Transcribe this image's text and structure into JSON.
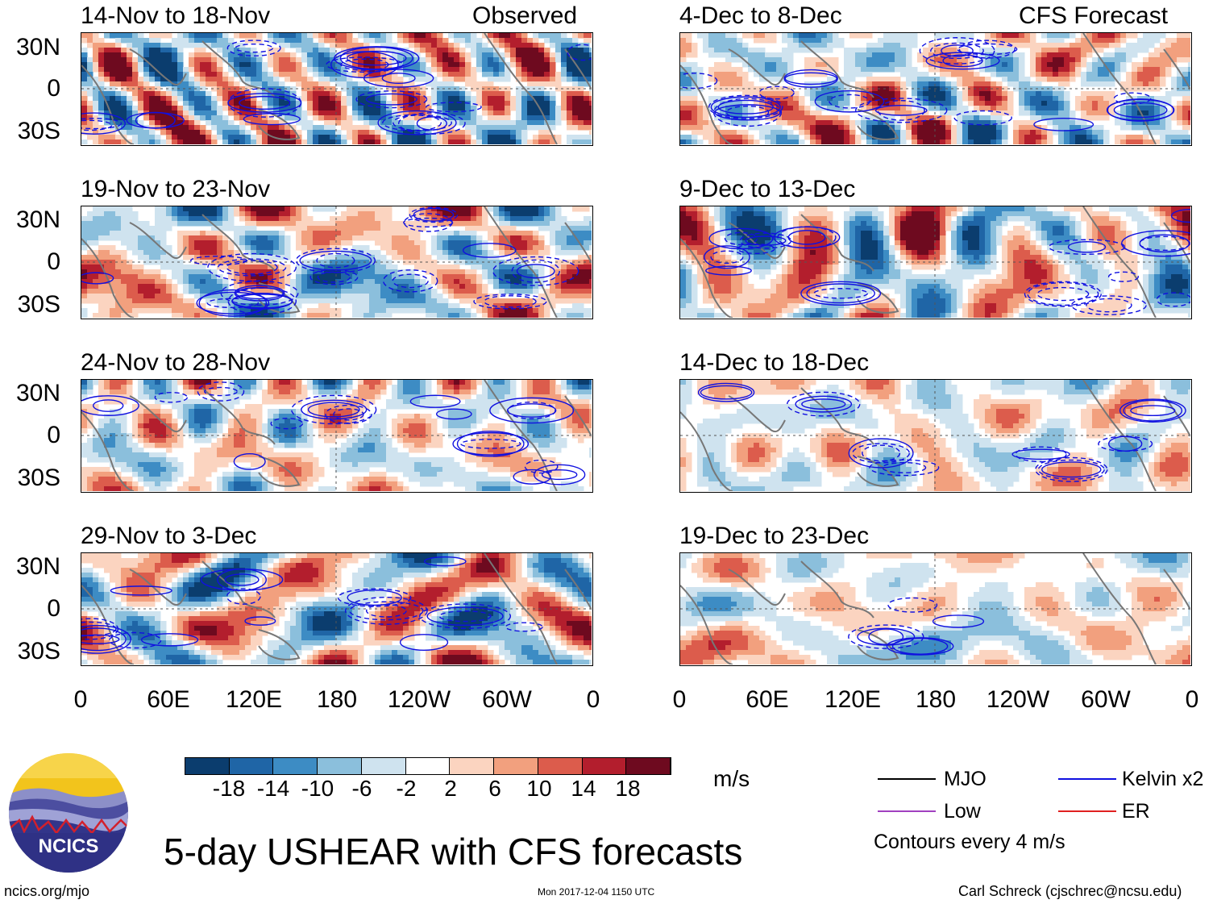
{
  "headers": {
    "left": "Observed",
    "right": "CFS Forecast"
  },
  "panels": {
    "left": [
      {
        "title": "14-Nov to 18-Nov"
      },
      {
        "title": "19-Nov to 23-Nov"
      },
      {
        "title": "24-Nov to 28-Nov"
      },
      {
        "title": "29-Nov to 3-Dec"
      }
    ],
    "right": [
      {
        "title": "4-Dec to 8-Dec"
      },
      {
        "title": "9-Dec to 13-Dec"
      },
      {
        "title": "14-Dec to 18-Dec"
      },
      {
        "title": "19-Dec to 23-Dec"
      }
    ]
  },
  "lat_labels": [
    "30N",
    "0",
    "30S"
  ],
  "lon_labels": [
    "0",
    "60E",
    "120E",
    "180",
    "120W",
    "60W",
    "0"
  ],
  "colorbar": {
    "ticks": [
      "-18",
      "-14",
      "-10",
      "-6",
      "-2",
      "2",
      "6",
      "10",
      "14",
      "18"
    ],
    "colors": [
      "#0b3d6e",
      "#1f65a6",
      "#3d8cc4",
      "#8bbfdc",
      "#cfe3ef",
      "#ffffff",
      "#fbd4c0",
      "#f2a07e",
      "#dc5c4c",
      "#b31e2d",
      "#6e0a1f"
    ],
    "unit": "m/s"
  },
  "legend": {
    "mjo": "MJO",
    "low": "Low",
    "kelvin": "Kelvin x2",
    "er": "ER",
    "note": "Contours every 4 m/s",
    "colors": {
      "mjo": "#000000",
      "low": "#a040c0",
      "kelvin": "#1010e0",
      "er": "#e02020"
    }
  },
  "logo": {
    "text": "NCICS"
  },
  "title": "5-day USHEAR with CFS forecasts",
  "footer": {
    "website": "ncics.org/mjo",
    "timestamp": "Mon 2017-12-04 1150 UTC",
    "author": "Carl Schreck (cjschrec@ncsu.edu)"
  }
}
